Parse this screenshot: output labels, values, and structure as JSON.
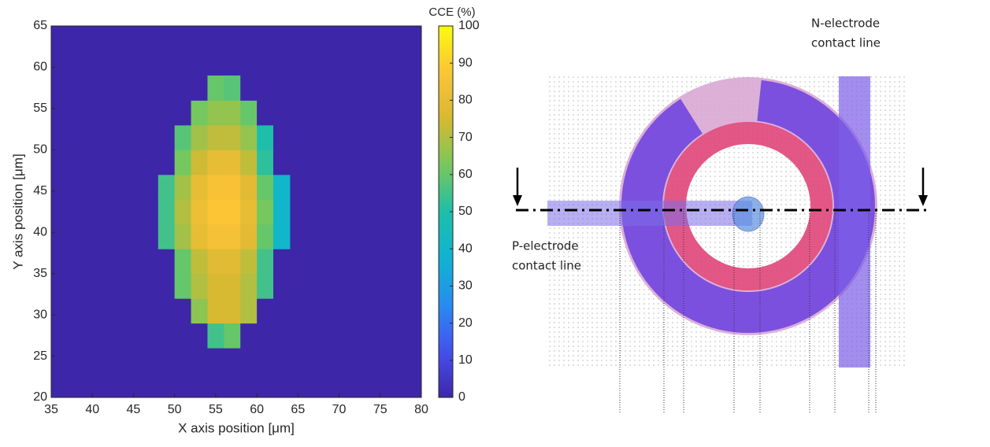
{
  "chart_data": {
    "type": "heatmap",
    "xlabel": "X axis position [μm]",
    "ylabel": "Y axis position [μm]",
    "xlim": [
      35,
      80
    ],
    "xticks": [
      35,
      40,
      45,
      50,
      55,
      60,
      65,
      70,
      75,
      80
    ],
    "ylim": [
      20,
      65
    ],
    "yticks": [
      20,
      25,
      30,
      35,
      40,
      45,
      50,
      55,
      60,
      65
    ],
    "xbins": [
      48,
      50,
      52,
      54,
      56,
      58,
      60,
      62,
      64
    ],
    "ybins": [
      26,
      29,
      32,
      35,
      38,
      41,
      44,
      47,
      50,
      53,
      56,
      59
    ],
    "z": [
      [
        0,
        0,
        0,
        55,
        60,
        0,
        0,
        0
      ],
      [
        0,
        0,
        65,
        75,
        75,
        70,
        0,
        0
      ],
      [
        0,
        60,
        70,
        75,
        75,
        70,
        55,
        0
      ],
      [
        0,
        60,
        72,
        78,
        78,
        72,
        55,
        0
      ],
      [
        55,
        68,
        80,
        85,
        85,
        78,
        60,
        40
      ],
      [
        55,
        70,
        82,
        88,
        88,
        80,
        62,
        40
      ],
      [
        55,
        68,
        80,
        86,
        86,
        78,
        60,
        40
      ],
      [
        0,
        62,
        74,
        80,
        80,
        72,
        52,
        0
      ],
      [
        0,
        58,
        68,
        72,
        72,
        66,
        50,
        0
      ],
      [
        0,
        0,
        62,
        66,
        66,
        60,
        0,
        0
      ],
      [
        0,
        0,
        0,
        60,
        58,
        0,
        0,
        0
      ]
    ],
    "colormap": "parula",
    "colorbar": {
      "label": "CCE (%)",
      "lim": [
        0,
        100
      ],
      "ticks": [
        0,
        10,
        20,
        30,
        40,
        50,
        60,
        70,
        80,
        90,
        100
      ]
    }
  },
  "diagram": {
    "labels": [
      "N-electrode",
      "contact line",
      "P-electrode",
      "contact line"
    ]
  }
}
